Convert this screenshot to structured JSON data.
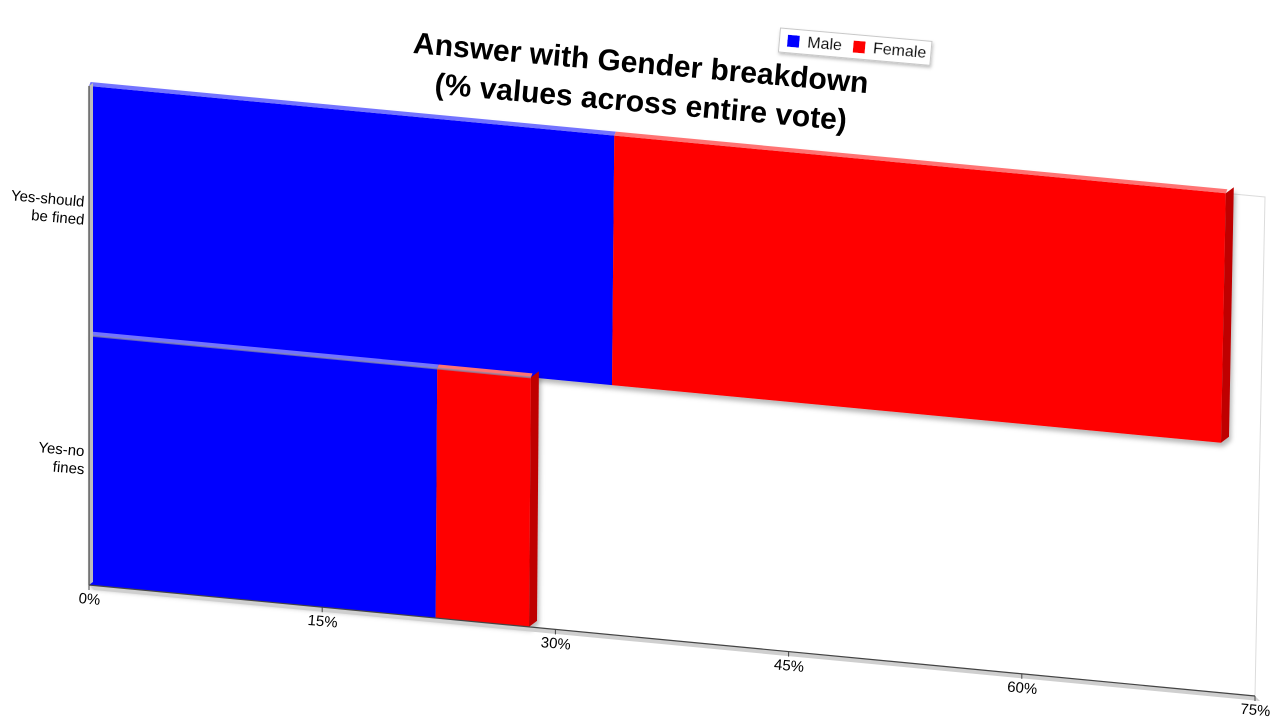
{
  "chart_data": {
    "type": "bar",
    "orientation": "horizontal",
    "stacked": true,
    "title": [
      "Answer with Gender breakdown",
      "(% values across entire vote)"
    ],
    "categories": [
      "Yes-should be fined",
      "Yes-no fines"
    ],
    "category_lines": [
      [
        "Yes-should",
        "be fined"
      ],
      [
        "Yes-no",
        "fines"
      ]
    ],
    "series": [
      {
        "name": "Male",
        "color": "#0000ff",
        "values": [
          33.5,
          22.3
        ]
      },
      {
        "name": "Female",
        "color": "#ff0000",
        "values": [
          39.0,
          6.0
        ]
      }
    ],
    "xlim": [
      0,
      75
    ],
    "xticks": [
      "0%",
      "15%",
      "30%",
      "45%",
      "60%",
      "75%"
    ],
    "legend": {
      "position": "top-right",
      "items": [
        "Male",
        "Female"
      ]
    },
    "grid": false
  }
}
